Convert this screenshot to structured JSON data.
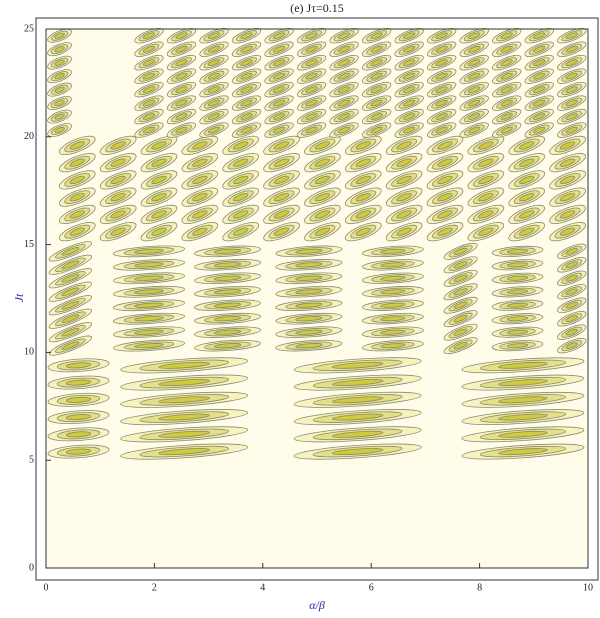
{
  "chart_data": {
    "type": "contour",
    "title": "(e) Jτ=0.15",
    "xlabel": "α/β",
    "ylabel": "Jt",
    "xlim": [
      0,
      10
    ],
    "ylim": [
      0,
      25
    ],
    "xticks": [
      0,
      2,
      4,
      6,
      8,
      10
    ],
    "yticks": [
      0,
      5,
      10,
      15,
      20,
      25
    ],
    "background": "#fffde9",
    "colors": [
      "#f6f3c0",
      "#e4e08a",
      "#cfcb3a"
    ],
    "line_color": "#8a8a70",
    "blocks": [
      {
        "x": [
          0,
          1.2
        ],
        "y": [
          5,
          9.8
        ],
        "dx": 1.2,
        "dy": 0.8
      },
      {
        "x": [
          1.3,
          3.8
        ],
        "y": [
          5,
          9.8
        ],
        "dx": 2.5,
        "dy": 0.8
      },
      {
        "x": [
          4.5,
          7
        ],
        "y": [
          5,
          9.8
        ],
        "dx": 2.5,
        "dy": 0.8
      },
      {
        "x": [
          7.6,
          10
        ],
        "y": [
          5,
          9.8
        ],
        "dx": 2.4,
        "dy": 0.8
      },
      {
        "x": [
          0,
          0.9
        ],
        "y": [
          10,
          15
        ],
        "dx": 0.9,
        "dy": 0.6
      },
      {
        "x": [
          1.2,
          2.6
        ],
        "y": [
          10,
          15
        ],
        "dx": 1.4,
        "dy": 0.6
      },
      {
        "x": [
          2.7,
          4
        ],
        "y": [
          10,
          15
        ],
        "dx": 1.3,
        "dy": 0.6
      },
      {
        "x": [
          4.2,
          5.5
        ],
        "y": [
          10,
          15
        ],
        "dx": 1.3,
        "dy": 0.6
      },
      {
        "x": [
          5.8,
          7
        ],
        "y": [
          10,
          15
        ],
        "dx": 1.2,
        "dy": 0.6
      },
      {
        "x": [
          7.3,
          8
        ],
        "y": [
          10,
          15
        ],
        "dx": 0.7,
        "dy": 0.6
      },
      {
        "x": [
          8.2,
          9.2
        ],
        "y": [
          10,
          15
        ],
        "dx": 1,
        "dy": 0.6
      },
      {
        "x": [
          9.4,
          10
        ],
        "y": [
          10,
          15
        ],
        "dx": 0.6,
        "dy": 0.6
      },
      {
        "x": [
          0.2,
          10
        ],
        "y": [
          15.2,
          20
        ],
        "dx": 0.75,
        "dy": 0.7
      },
      {
        "x": [
          0,
          0.5
        ],
        "y": [
          20,
          25
        ],
        "dx": 0.5,
        "dy": 0.6
      },
      {
        "x": [
          1.6,
          10
        ],
        "y": [
          20,
          25
        ],
        "dx": 0.6,
        "dy": 0.6
      }
    ]
  }
}
